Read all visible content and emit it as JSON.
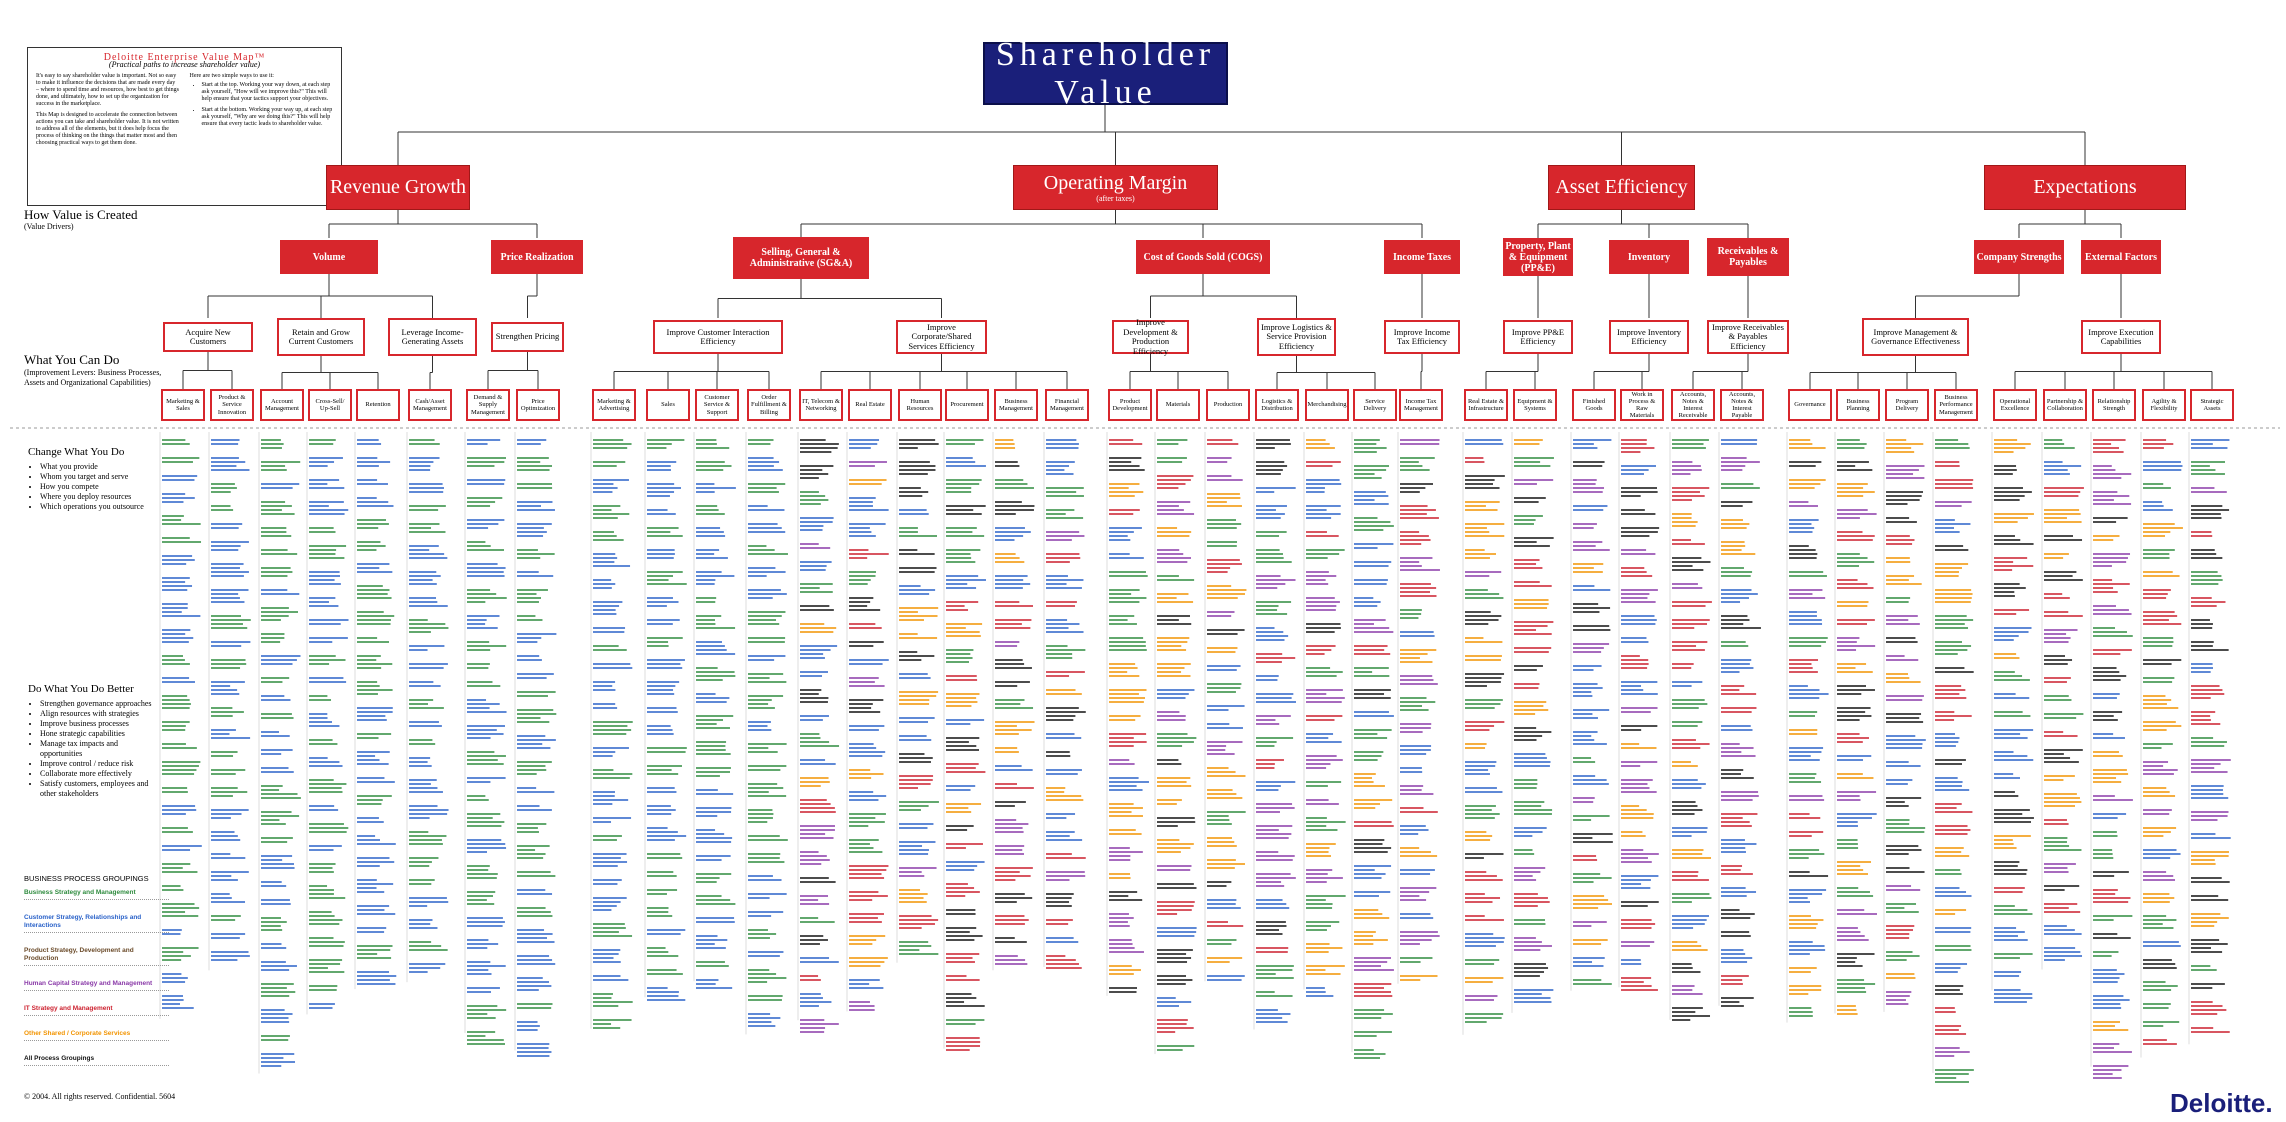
{
  "title": "Shareholder Value",
  "intro": {
    "title": "Deloitte Enterprise Value Map™",
    "subtitle": "(Practical paths to increase shareholder value)",
    "paragraphs": [
      "It's easy to say shareholder value is important. Not so easy to make it influence the decisions that are made every day – where to spend time and resources, how best to get things done, and ultimately, how to set up the organization for success in the marketplace.",
      "This Map is designed to accelerate the connection between actions you can take and shareholder value. It is not written to address all of the elements, but it does help focus the process of thinking on the things that matter most and then choosing practical ways to get them done."
    ],
    "bullets_intro": "Here are two simple ways to use it:",
    "bullets": [
      "Start at the top. Working your way down, at each step ask yourself, \"How will we improve this?\" This will help ensure that your tactics support your objectives.",
      "Start at the bottom. Working your way up, at each step ask yourself, \"Why are we doing this?\" This will help ensure that every tactic leads to shareholder value."
    ]
  },
  "sections": {
    "how_value": "How Value is Created",
    "how_value_sub": "(Value Drivers)",
    "what_you_can_do": "What You Can Do",
    "what_you_can_do_sub": "(Improvement Levers: Business Processes, Assets and Organizational Capabilities)",
    "change": "Change What You Do",
    "change_items": [
      "What you provide",
      "Whom you target and serve",
      "How you compete",
      "Where you deploy resources",
      "Which operations you outsource"
    ],
    "better": "Do What You Do Better",
    "better_items": [
      "Strengthen governance approaches",
      "Align resources with strategies",
      "Improve business processes",
      "Hone strategic capabilities",
      "Manage tax impacts and opportunities",
      "Improve control / reduce risk",
      "Collaborate more effectively",
      "Satisfy customers, employees and other stakeholders"
    ]
  },
  "groupings": {
    "title": "BUSINESS PROCESS GROUPINGS",
    "items": [
      {
        "name": "Business Strategy and Management",
        "color": "#2e8b3e"
      },
      {
        "name": "Customer Strategy, Relationships and Interactions",
        "color": "#2a62c9"
      },
      {
        "name": "Product Strategy, Development and Production",
        "color": "#6b4b2a"
      },
      {
        "name": "Human Capital Strategy and Management",
        "color": "#8a3aa8"
      },
      {
        "name": "IT Strategy and Management",
        "color": "#cc1f2d"
      },
      {
        "name": "Other Shared / Corporate Services",
        "color": "#f29400"
      },
      {
        "name": "All Process Groupings",
        "color": "#111111"
      }
    ]
  },
  "drivers": [
    {
      "label": "Revenue Growth"
    },
    {
      "label": "Operating Margin",
      "note": "(after taxes)"
    },
    {
      "label": "Asset Efficiency"
    },
    {
      "label": "Expectations"
    }
  ],
  "sub_drivers": [
    "Volume",
    "Price Realization",
    "Selling, General & Administrative (SG&A)",
    "Cost of Goods Sold (COGS)",
    "Income Taxes",
    "Property, Plant & Equipment (PP&E)",
    "Inventory",
    "Receivables & Payables",
    "Company Strengths",
    "External Factors"
  ],
  "levers": [
    "Acquire New Customers",
    "Retain and Grow Current Customers",
    "Leverage Income-Generating Assets",
    "Strengthen Pricing",
    "Improve Customer Interaction Efficiency",
    "Improve Corporate/Shared Services Efficiency",
    "Improve Development & Production Efficiency",
    "Improve Logistics & Service Provision Efficiency",
    "Improve Income Tax Efficiency",
    "Improve PP&E Efficiency",
    "Improve Inventory Efficiency",
    "Improve Receivables & Payables Efficiency",
    "Improve Management & Governance Effectiveness",
    "Improve Execution Capabilities"
  ],
  "areas": [
    "Marketing & Sales",
    "Product & Service Innovation",
    "Account Management",
    "Cross-Sell/ Up-Sell",
    "Retention",
    "Cash/Asset Management",
    "Demand & Supply Management",
    "Price Optimization",
    "Marketing & Advertising",
    "Sales",
    "Customer Service & Support",
    "Order Fulfillment & Billing",
    "IT, Telecom & Networking",
    "Real Estate",
    "Human Resources",
    "Procurement",
    "Business Management",
    "Financial Management",
    "Product Development",
    "Materials",
    "Production",
    "Logistics & Distribution",
    "Merchandising",
    "Service Delivery",
    "Income Tax Management",
    "Real Estate & Infrastructure",
    "Equipment & Systems",
    "Finished Goods",
    "Work in Process & Raw Materials",
    "Accounts, Notes & Interest Receivable",
    "Accounts, Notes & Interest Payable",
    "Governance",
    "Business Planning",
    "Program Delivery",
    "Business Performance Management",
    "Operational Excellence",
    "Partnership & Collaboration",
    "Relationship Strength",
    "Agility & Flexibility",
    "Strategic Assets"
  ],
  "footer": "© 2004. All rights reserved. Confidential. 5604",
  "logo": "Deloitte."
}
